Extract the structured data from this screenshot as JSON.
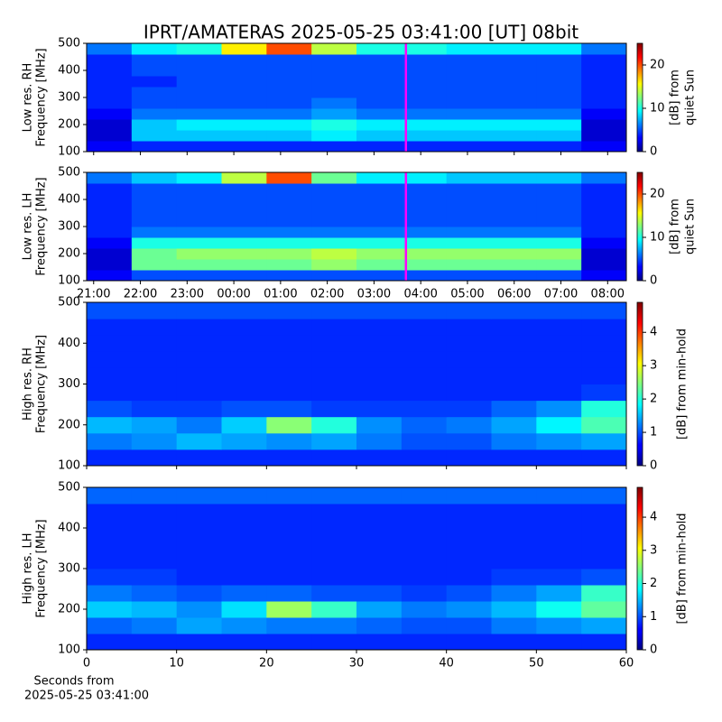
{
  "title": "IPRT/AMATERAS 2025-05-25 03:41:00 [UT]   08bit",
  "footnote": [
    "Seconds from",
    "2025-05-25 03:41:00"
  ],
  "chart_data": [
    {
      "type": "heatmap",
      "ylabel": [
        "Low res. RH",
        "Frequency [MHz]"
      ],
      "colorbar_label": [
        "[dB] from",
        "quiet Sun"
      ],
      "cmap": "jet",
      "clim": [
        0,
        25
      ],
      "cticks": [
        0,
        10,
        20
      ],
      "xlim": [
        20.85,
        32.4
      ],
      "show_xticklabels": false,
      "xticks": [
        {
          "value": 21,
          "label": "21:00"
        },
        {
          "value": 22,
          "label": "22:00"
        },
        {
          "value": 23,
          "label": "23:00"
        },
        {
          "value": 24,
          "label": "00:00"
        },
        {
          "value": 25,
          "label": "01:00"
        },
        {
          "value": 26,
          "label": "02:00"
        },
        {
          "value": 27,
          "label": "03:00"
        },
        {
          "value": 28,
          "label": "04:00"
        },
        {
          "value": 29,
          "label": "05:00"
        },
        {
          "value": 30,
          "label": "06:00"
        },
        {
          "value": 31,
          "label": "07:00"
        },
        {
          "value": 32,
          "label": "08:00"
        }
      ],
      "ylim": [
        100,
        500
      ],
      "yticks": [
        100,
        200,
        300,
        400,
        500
      ],
      "vline": {
        "x": 27.683,
        "color": "#ff00ff"
      },
      "z": [
        [
          3,
          4,
          4,
          4,
          4,
          4,
          4,
          4,
          4,
          4,
          4,
          3
        ],
        [
          2,
          8,
          8,
          8,
          8,
          9,
          8,
          8,
          8,
          8,
          8,
          2
        ],
        [
          2,
          8,
          9,
          9,
          9,
          10,
          9,
          9,
          9,
          9,
          9,
          2
        ],
        [
          3,
          6,
          6,
          6,
          6,
          7,
          6,
          6,
          6,
          6,
          6,
          3
        ],
        [
          4,
          5,
          5,
          5,
          5,
          6,
          5,
          5,
          5,
          5,
          5,
          4
        ],
        [
          4,
          5,
          5,
          5,
          5,
          5,
          5,
          5,
          5,
          5,
          5,
          4
        ],
        [
          4,
          4,
          5,
          5,
          5,
          5,
          5,
          5,
          5,
          5,
          5,
          4
        ],
        [
          4,
          5,
          5,
          5,
          5,
          5,
          5,
          5,
          5,
          5,
          5,
          4
        ],
        [
          4,
          5,
          5,
          5,
          5,
          5,
          5,
          5,
          5,
          5,
          5,
          4
        ],
        [
          6,
          9,
          10,
          16,
          20,
          14,
          10,
          10,
          9,
          9,
          9,
          6
        ]
      ]
    },
    {
      "type": "heatmap",
      "ylabel": [
        "Low res. LH",
        "Frequency [MHz]"
      ],
      "colorbar_label": [
        "[dB] from",
        "quiet Sun"
      ],
      "cmap": "jet",
      "clim": [
        0,
        25
      ],
      "cticks": [
        0,
        10,
        20
      ],
      "xlim": [
        20.85,
        32.4
      ],
      "show_xticklabels": true,
      "xticks": [
        {
          "value": 21,
          "label": "21:00"
        },
        {
          "value": 22,
          "label": "22:00"
        },
        {
          "value": 23,
          "label": "23:00"
        },
        {
          "value": 24,
          "label": "00:00"
        },
        {
          "value": 25,
          "label": "01:00"
        },
        {
          "value": 26,
          "label": "02:00"
        },
        {
          "value": 27,
          "label": "03:00"
        },
        {
          "value": 28,
          "label": "04:00"
        },
        {
          "value": 29,
          "label": "05:00"
        },
        {
          "value": 30,
          "label": "06:00"
        },
        {
          "value": 31,
          "label": "07:00"
        },
        {
          "value": 32,
          "label": "08:00"
        }
      ],
      "ylim": [
        100,
        500
      ],
      "yticks": [
        100,
        200,
        300,
        400,
        500
      ],
      "vline": {
        "x": 27.683,
        "color": "#ff00ff"
      },
      "z": [
        [
          3,
          5,
          5,
          5,
          5,
          5,
          5,
          5,
          5,
          5,
          5,
          3
        ],
        [
          2,
          12,
          12,
          12,
          12,
          13,
          12,
          12,
          12,
          12,
          12,
          2
        ],
        [
          2,
          12,
          13,
          13,
          13,
          14,
          13,
          13,
          13,
          13,
          13,
          2
        ],
        [
          3,
          10,
          10,
          10,
          10,
          10,
          10,
          10,
          10,
          10,
          10,
          3
        ],
        [
          4,
          6,
          6,
          6,
          6,
          6,
          6,
          6,
          6,
          6,
          6,
          4
        ],
        [
          4,
          5,
          5,
          5,
          5,
          5,
          5,
          5,
          5,
          5,
          5,
          4
        ],
        [
          4,
          5,
          5,
          5,
          5,
          5,
          5,
          5,
          5,
          5,
          5,
          4
        ],
        [
          4,
          5,
          5,
          5,
          5,
          5,
          5,
          5,
          5,
          5,
          5,
          4
        ],
        [
          4,
          5,
          5,
          5,
          5,
          5,
          5,
          5,
          5,
          5,
          5,
          4
        ],
        [
          6,
          8,
          9,
          14,
          20,
          12,
          9,
          9,
          8,
          8,
          8,
          6
        ]
      ]
    },
    {
      "type": "heatmap",
      "ylabel": [
        "High res. RH",
        "Frequency [MHz]"
      ],
      "colorbar_label": [
        "[dB] from min-hold"
      ],
      "cmap": "jet",
      "clim": [
        0,
        4.9
      ],
      "cticks": [
        0,
        1,
        2,
        3,
        4
      ],
      "xlim": [
        0,
        60
      ],
      "show_xticklabels": false,
      "xticks": [
        0,
        10,
        20,
        30,
        40,
        50,
        60
      ],
      "ylim": [
        100,
        500
      ],
      "yticks": [
        100,
        200,
        300,
        400,
        500
      ],
      "z": [
        [
          0.8,
          0.8,
          0.8,
          0.8,
          0.8,
          0.8,
          0.8,
          0.8,
          0.8,
          0.8,
          0.8,
          0.8
        ],
        [
          1.2,
          1.3,
          1.5,
          1.4,
          1.3,
          1.4,
          1.2,
          1.0,
          1.0,
          1.2,
          1.3,
          1.4
        ],
        [
          1.5,
          1.4,
          1.2,
          1.6,
          2.5,
          2.0,
          1.3,
          1.1,
          1.2,
          1.4,
          1.8,
          2.2
        ],
        [
          1.0,
          0.9,
          0.9,
          1.0,
          1.0,
          0.9,
          0.9,
          0.9,
          0.9,
          1.1,
          1.3,
          2.0
        ],
        [
          0.8,
          0.8,
          0.8,
          0.8,
          0.8,
          0.8,
          0.8,
          0.8,
          0.8,
          0.8,
          0.8,
          0.9
        ],
        [
          0.8,
          0.8,
          0.8,
          0.8,
          0.8,
          0.8,
          0.8,
          0.8,
          0.8,
          0.8,
          0.8,
          0.8
        ],
        [
          0.8,
          0.8,
          0.8,
          0.8,
          0.8,
          0.8,
          0.8,
          0.8,
          0.8,
          0.8,
          0.8,
          0.8
        ],
        [
          0.8,
          0.8,
          0.8,
          0.8,
          0.8,
          0.8,
          0.8,
          0.8,
          0.8,
          0.8,
          0.8,
          0.8
        ],
        [
          0.8,
          0.8,
          0.8,
          0.8,
          0.8,
          0.8,
          0.8,
          0.8,
          0.8,
          0.8,
          0.8,
          0.8
        ],
        [
          1.0,
          1.0,
          1.0,
          1.0,
          1.0,
          1.0,
          1.0,
          1.0,
          1.0,
          1.0,
          1.0,
          1.0
        ]
      ]
    },
    {
      "type": "heatmap",
      "ylabel": [
        "High res. LH",
        "Frequency [MHz]"
      ],
      "colorbar_label": [
        "[dB] from min-hold"
      ],
      "cmap": "jet",
      "clim": [
        0,
        4.9
      ],
      "cticks": [
        0,
        1,
        2,
        3,
        4
      ],
      "xlim": [
        0,
        60
      ],
      "show_xticklabels": true,
      "xticks": [
        0,
        10,
        20,
        30,
        40,
        50,
        60
      ],
      "ylim": [
        100,
        500
      ],
      "yticks": [
        100,
        200,
        300,
        400,
        500
      ],
      "z": [
        [
          0.8,
          0.8,
          0.8,
          0.8,
          0.8,
          0.8,
          0.8,
          0.8,
          0.8,
          0.8,
          0.8,
          0.8
        ],
        [
          1.1,
          1.2,
          1.4,
          1.3,
          1.2,
          1.2,
          1.1,
          1.0,
          1.0,
          1.2,
          1.3,
          1.4
        ],
        [
          1.6,
          1.5,
          1.3,
          1.7,
          2.6,
          2.1,
          1.4,
          1.2,
          1.3,
          1.5,
          1.9,
          2.3
        ],
        [
          1.2,
          1.1,
          1.0,
          1.1,
          1.1,
          1.0,
          1.0,
          0.9,
          1.0,
          1.2,
          1.4,
          2.1
        ],
        [
          0.9,
          0.9,
          0.8,
          0.8,
          0.8,
          0.8,
          0.8,
          0.8,
          0.8,
          0.9,
          0.9,
          1.0
        ],
        [
          0.8,
          0.8,
          0.8,
          0.8,
          0.8,
          0.8,
          0.8,
          0.8,
          0.8,
          0.8,
          0.8,
          0.8
        ],
        [
          0.8,
          0.8,
          0.8,
          0.8,
          0.8,
          0.8,
          0.8,
          0.8,
          0.8,
          0.8,
          0.8,
          0.8
        ],
        [
          0.8,
          0.8,
          0.8,
          0.8,
          0.8,
          0.8,
          0.8,
          0.8,
          0.8,
          0.8,
          0.8,
          0.8
        ],
        [
          0.8,
          0.8,
          0.8,
          0.8,
          0.8,
          0.8,
          0.8,
          0.8,
          0.8,
          0.8,
          0.8,
          0.8
        ],
        [
          1.1,
          1.1,
          1.1,
          1.1,
          1.1,
          1.1,
          1.1,
          1.1,
          1.1,
          1.1,
          1.1,
          1.1
        ]
      ]
    }
  ]
}
